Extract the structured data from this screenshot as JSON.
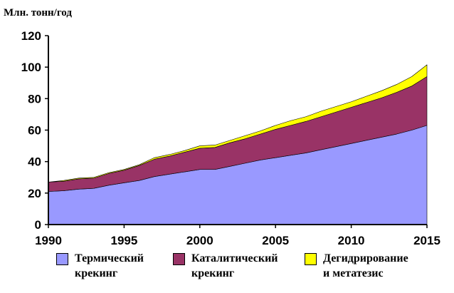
{
  "chart_data": {
    "type": "area",
    "stacked": true,
    "title": "",
    "ylabel": "Млн. тонн/год",
    "xlabel": "",
    "xlim": [
      1990,
      2015
    ],
    "ylim": [
      0,
      120
    ],
    "x_ticks": [
      1990,
      1995,
      2000,
      2005,
      2010,
      2015
    ],
    "y_ticks": [
      0,
      20,
      40,
      60,
      80,
      100,
      120
    ],
    "grid": false,
    "legend_position": "bottom",
    "x": [
      1990,
      1991,
      1992,
      1993,
      1994,
      1995,
      1996,
      1997,
      1998,
      1999,
      2000,
      2001,
      2002,
      2003,
      2004,
      2005,
      2006,
      2007,
      2008,
      2009,
      2010,
      2011,
      2012,
      2013,
      2014,
      2015
    ],
    "series": [
      {
        "name": "Термический\nкрекинг",
        "color": "#9999ff",
        "values": [
          21,
          21.5,
          22.5,
          23,
          25,
          26.5,
          28,
          30.5,
          32,
          33.5,
          35,
          35,
          37,
          39,
          41,
          42.5,
          44,
          45.5,
          47.5,
          49.5,
          51.5,
          53.5,
          55.5,
          57.5,
          60,
          63
        ]
      },
      {
        "name": "Каталитический\nкрекинг",
        "color": "#993366",
        "values": [
          6,
          6,
          6.5,
          6.5,
          7.5,
          8,
          9.5,
          11,
          11.5,
          12.5,
          13.5,
          14,
          15,
          15.5,
          16.5,
          18,
          19,
          20,
          21,
          22,
          23,
          24,
          25,
          26.5,
          28,
          31
        ]
      },
      {
        "name": "Дегидрирование\nи метатезис",
        "color": "#ffff00",
        "values": [
          0,
          0.5,
          0.5,
          0.5,
          0.5,
          0.5,
          0.5,
          1,
          1,
          1,
          1.5,
          1.5,
          1.5,
          2,
          2,
          2.5,
          3,
          3,
          3.5,
          3.5,
          3.5,
          4,
          4.5,
          5,
          6,
          7.5
        ]
      }
    ]
  }
}
